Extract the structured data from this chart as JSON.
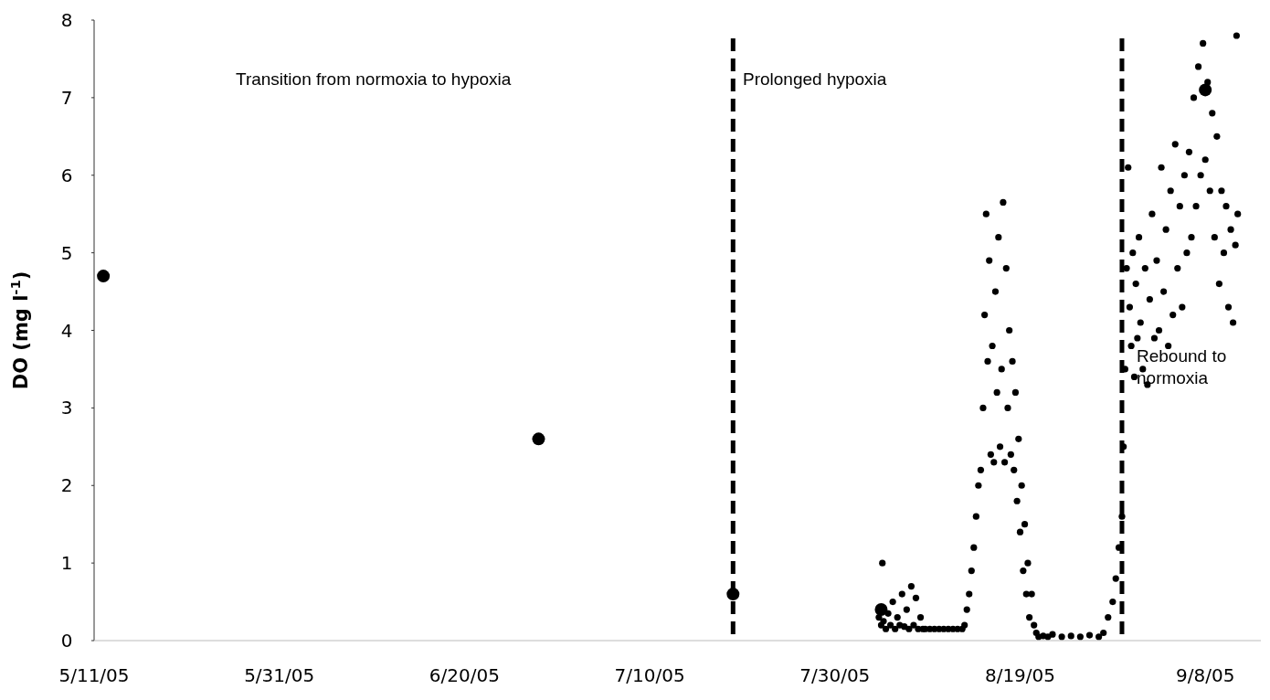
{
  "chart_data": {
    "type": "scatter",
    "ylabel": "DO (mg l$^{-1}$)",
    "xlim": [
      "2005-05-11",
      "2005-09-14"
    ],
    "ylim": [
      0,
      8
    ],
    "xticks": [
      {
        "value": "2005-05-11",
        "label": "5/11/05"
      },
      {
        "value": "2005-05-31",
        "label": "5/31/05"
      },
      {
        "value": "2005-06-20",
        "label": "6/20/05"
      },
      {
        "value": "2005-07-10",
        "label": "7/10/05"
      },
      {
        "value": "2005-07-30",
        "label": "7/30/05"
      },
      {
        "value": "2005-08-19",
        "label": "8/19/05"
      },
      {
        "value": "2005-09-08",
        "label": "9/8/05"
      }
    ],
    "yticks": [
      0,
      1,
      2,
      3,
      4,
      5,
      6,
      7,
      8
    ],
    "grid": false,
    "marker": "circle",
    "ref_lines": [
      {
        "axis": "x",
        "value": "2005-07-19",
        "color": "#000000",
        "line_style": "dashed"
      },
      {
        "axis": "x",
        "value": "2005-08-30",
        "color": "#000000",
        "line_style": "dashed"
      }
    ],
    "annotations": [
      "Transition from normoxia to hypoxia",
      "Prolonged hypoxia",
      "Rebound to normoxia"
    ],
    "series": [
      {
        "color": "#000000",
        "x": [
          "2005-05-12",
          "2005-06-28",
          "2005-07-19",
          "2005-08-04",
          "2005-09-08"
        ],
        "values": [
          4.7,
          2.6,
          0.6,
          0.4,
          7.1
        ]
      },
      {
        "color": "#000000",
        "x": [
          "2005-08-03T18:00",
          "2005-08-04T00:00",
          "2005-08-04T03:00",
          "2005-08-04T06:00",
          "2005-08-04T12:00",
          "2005-08-04T18:00",
          "2005-08-05T00:00",
          "2005-08-05T06:00",
          "2005-08-05T12:00",
          "2005-08-05T18:00",
          "2005-08-06T00:00",
          "2005-08-06T06:00",
          "2005-08-06T12:00",
          "2005-08-06T18:00",
          "2005-08-07T00:00",
          "2005-08-07T06:00",
          "2005-08-07T12:00",
          "2005-08-07T18:00",
          "2005-08-08T00:00",
          "2005-08-08T06:00",
          "2005-08-08T12:00",
          "2005-08-08T18:00",
          "2005-08-09T06:00",
          "2005-08-09T18:00",
          "2005-08-10T06:00",
          "2005-08-10T18:00",
          "2005-08-11T06:00",
          "2005-08-11T18:00",
          "2005-08-12T06:00",
          "2005-08-12T18:00",
          "2005-08-13T00:00",
          "2005-08-13T06:00",
          "2005-08-13T12:00",
          "2005-08-13T18:00",
          "2005-08-14T00:00",
          "2005-08-14T06:00",
          "2005-08-14T12:00",
          "2005-08-14T18:00",
          "2005-08-15T00:00",
          "2005-08-15T04:00",
          "2005-08-15T08:00",
          "2005-08-15T12:00",
          "2005-08-15T16:00",
          "2005-08-15T20:00",
          "2005-08-16T00:00",
          "2005-08-16T04:00",
          "2005-08-16T08:00",
          "2005-08-16T12:00",
          "2005-08-16T16:00",
          "2005-08-16T20:00",
          "2005-08-17T00:00",
          "2005-08-17T04:00",
          "2005-08-17T08:00",
          "2005-08-17T12:00",
          "2005-08-17T16:00",
          "2005-08-17T20:00",
          "2005-08-18T00:00",
          "2005-08-18T04:00",
          "2005-08-18T08:00",
          "2005-08-18T12:00",
          "2005-08-18T16:00",
          "2005-08-18T20:00",
          "2005-08-19T00:00",
          "2005-08-19T04:00",
          "2005-08-19T08:00",
          "2005-08-19T12:00",
          "2005-08-19T16:00",
          "2005-08-19T20:00",
          "2005-08-20T00:00",
          "2005-08-20T06:00",
          "2005-08-20T12:00",
          "2005-08-20T18:00",
          "2005-08-21T00:00",
          "2005-08-21T12:00",
          "2005-08-22T00:00",
          "2005-08-22T12:00",
          "2005-08-23T12:00",
          "2005-08-24T12:00",
          "2005-08-25T12:00",
          "2005-08-26T12:00",
          "2005-08-27T12:00",
          "2005-08-28T00:00",
          "2005-08-28T12:00",
          "2005-08-29T00:00",
          "2005-08-29T08:00",
          "2005-08-29T16:00",
          "2005-08-30T00:00",
          "2005-08-30T04:00",
          "2005-08-30T08:00",
          "2005-08-30T12:00",
          "2005-08-30T16:00",
          "2005-08-30T20:00",
          "2005-08-31T00:00",
          "2005-08-31T04:00",
          "2005-08-31T08:00",
          "2005-08-31T12:00",
          "2005-08-31T16:00",
          "2005-08-31T20:00",
          "2005-09-01T00:00",
          "2005-09-01T06:00",
          "2005-09-01T12:00",
          "2005-09-01T18:00",
          "2005-09-02T00:00",
          "2005-09-02T06:00",
          "2005-09-02T12:00",
          "2005-09-02T18:00",
          "2005-09-03T00:00",
          "2005-09-03T06:00",
          "2005-09-03T12:00",
          "2005-09-03T18:00",
          "2005-09-04T00:00",
          "2005-09-04T06:00",
          "2005-09-04T12:00",
          "2005-09-04T18:00",
          "2005-09-05T00:00",
          "2005-09-05T06:00",
          "2005-09-05T12:00",
          "2005-09-05T18:00",
          "2005-09-06T00:00",
          "2005-09-06T06:00",
          "2005-09-06T12:00",
          "2005-09-06T18:00",
          "2005-09-07T00:00",
          "2005-09-07T06:00",
          "2005-09-07T12:00",
          "2005-09-07T18:00",
          "2005-09-08T00:00",
          "2005-09-08T06:00",
          "2005-09-08T12:00",
          "2005-09-08T18:00",
          "2005-09-09T00:00",
          "2005-09-09T06:00",
          "2005-09-09T12:00",
          "2005-09-09T18:00",
          "2005-09-10T00:00",
          "2005-09-10T06:00",
          "2005-09-10T12:00",
          "2005-09-10T18:00",
          "2005-09-11T00:00",
          "2005-09-11T06:00",
          "2005-09-11T09:00",
          "2005-09-11T12:00"
        ],
        "values": [
          0.3,
          0.2,
          1.0,
          0.25,
          0.15,
          0.35,
          0.2,
          0.5,
          0.15,
          0.3,
          0.2,
          0.6,
          0.18,
          0.4,
          0.15,
          0.7,
          0.2,
          0.55,
          0.15,
          0.3,
          0.15,
          0.15,
          0.15,
          0.15,
          0.15,
          0.15,
          0.15,
          0.15,
          0.15,
          0.15,
          0.2,
          0.4,
          0.6,
          0.9,
          1.2,
          1.6,
          2.0,
          2.2,
          3.0,
          4.2,
          5.5,
          3.6,
          4.9,
          2.4,
          3.8,
          2.3,
          4.5,
          3.2,
          5.2,
          2.5,
          3.5,
          5.65,
          2.3,
          4.8,
          3.0,
          4.0,
          2.4,
          3.6,
          2.2,
          3.2,
          1.8,
          2.6,
          1.4,
          2.0,
          0.9,
          1.5,
          0.6,
          1.0,
          0.3,
          0.6,
          0.2,
          0.1,
          0.05,
          0.06,
          0.05,
          0.08,
          0.05,
          0.06,
          0.05,
          0.07,
          0.05,
          0.1,
          0.3,
          0.5,
          0.8,
          1.2,
          1.6,
          2.5,
          3.5,
          4.8,
          6.1,
          4.3,
          3.8,
          5.0,
          3.4,
          4.6,
          3.9,
          5.2,
          4.1,
          3.5,
          4.8,
          3.3,
          4.4,
          5.5,
          3.9,
          4.9,
          4.0,
          6.1,
          4.5,
          5.3,
          3.8,
          5.8,
          4.2,
          6.4,
          4.8,
          5.6,
          4.3,
          6.0,
          5.0,
          6.3,
          5.2,
          7.0,
          5.6,
          7.4,
          6.0,
          7.7,
          6.2,
          7.2,
          5.8,
          6.8,
          5.2,
          6.5,
          4.6,
          5.8,
          5.0,
          5.6,
          4.3,
          5.3,
          4.1,
          5.1,
          7.8,
          5.5
        ]
      }
    ]
  }
}
